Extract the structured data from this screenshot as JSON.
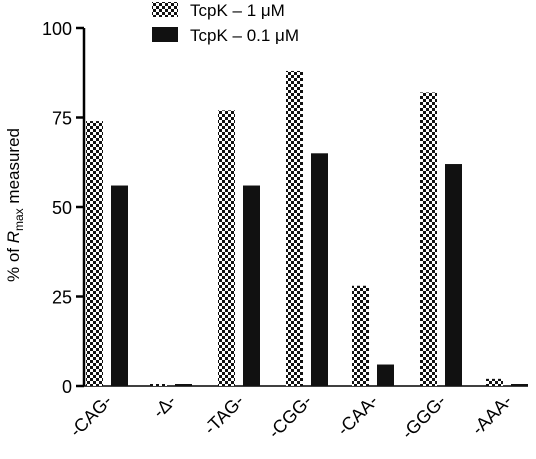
{
  "chart_data": {
    "type": "bar",
    "title": "",
    "xlabel": "",
    "ylabel": {
      "prefix": "% of ",
      "italic": "R",
      "subscript": "max",
      "suffix": " measured"
    },
    "ylim": [
      0,
      100
    ],
    "yticks": [
      "0",
      "25",
      "50",
      "75",
      "100"
    ],
    "categories": [
      "-CAG-",
      "-Δ-",
      "-TAG-",
      "-CGG-",
      "-CAA-",
      "-GGG-",
      "-AAA-"
    ],
    "legend_position": "top",
    "series": [
      {
        "name": "TcpK – 1 μM",
        "pattern": "checkered",
        "values": [
          74,
          0,
          77,
          88,
          28,
          82,
          2
        ]
      },
      {
        "name": "TcpK – 0.1 μM",
        "pattern": "solid",
        "values": [
          56,
          0,
          56,
          65,
          6,
          62,
          0
        ]
      }
    ],
    "colors": {
      "solid": "#111111",
      "check_dark": "#111111",
      "check_light": "#ffffff"
    }
  }
}
